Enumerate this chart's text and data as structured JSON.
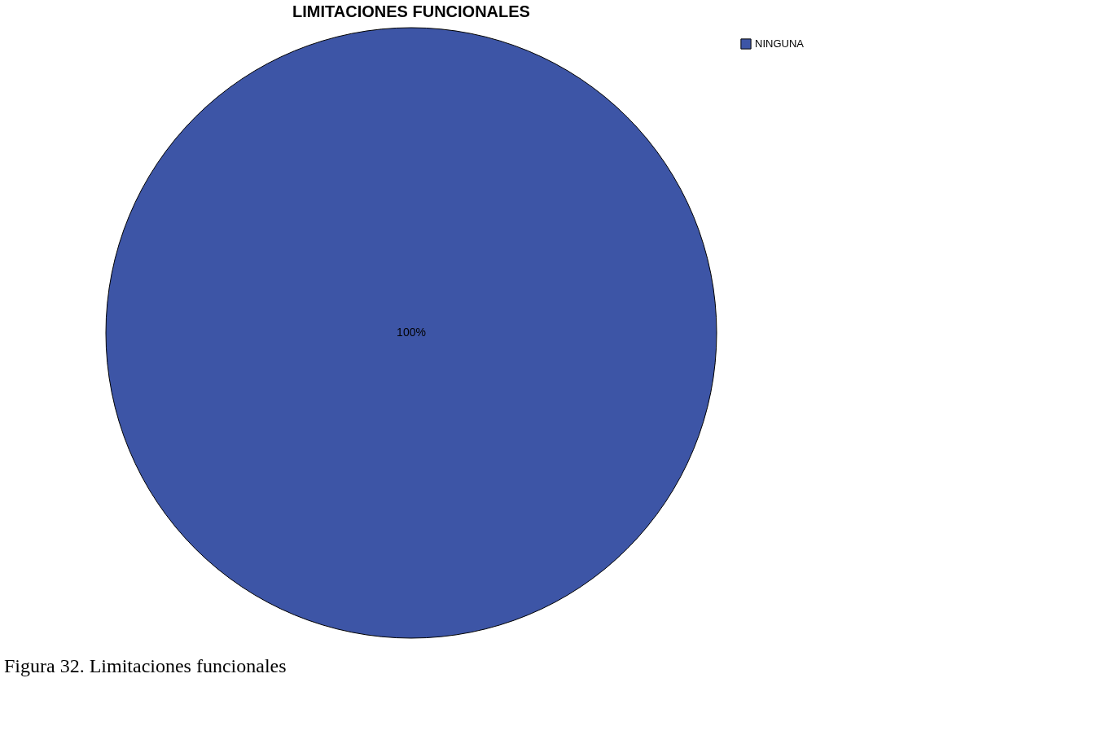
{
  "chart_data": {
    "type": "pie",
    "title": "LIMITACIONES FUNCIONALES",
    "categories": [
      "NINGUNA"
    ],
    "values": [
      100
    ],
    "colors": [
      "#3d55a6"
    ],
    "value_labels": [
      "100%"
    ],
    "legend": "top right",
    "annotations": [
      "Figura 32. Limitaciones funcionales"
    ]
  }
}
